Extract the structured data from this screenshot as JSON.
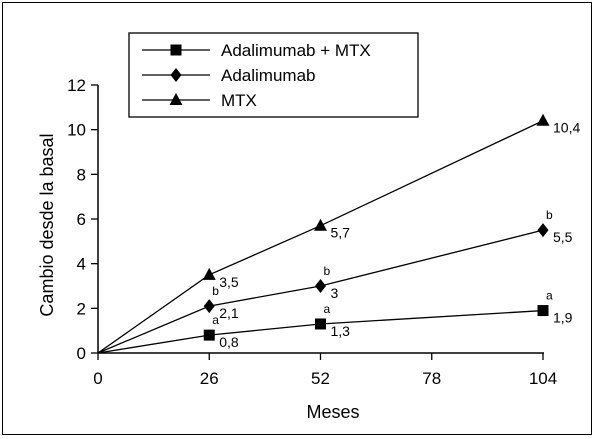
{
  "chart_data": {
    "type": "line",
    "xlabel": "Meses",
    "ylabel": "Cambio desde la basal",
    "xlim": [
      0,
      104
    ],
    "ylim": [
      0,
      12
    ],
    "x_ticks": [
      "0",
      "26",
      "52",
      "78",
      "104"
    ],
    "y_ticks": [
      "0",
      "2",
      "4",
      "6",
      "8",
      "10",
      "12"
    ],
    "grid": false,
    "legend_position": "top-left",
    "x": [
      0,
      26,
      52,
      104
    ],
    "series": [
      {
        "name": "Adalimumab + MTX",
        "marker": "square",
        "values": [
          0,
          0.8,
          1.3,
          1.9
        ],
        "point_labels": [
          "",
          "0,8",
          "1,3",
          "1,9"
        ],
        "sig_labels": [
          "",
          "a",
          "a",
          "a"
        ]
      },
      {
        "name": "Adalimumab",
        "marker": "diamond",
        "values": [
          0,
          2.1,
          3.0,
          5.5
        ],
        "point_labels": [
          "",
          "2,1",
          "3",
          "5,5"
        ],
        "sig_labels": [
          "",
          "b",
          "b",
          "b"
        ]
      },
      {
        "name": "MTX",
        "marker": "triangle",
        "values": [
          0,
          3.5,
          5.7,
          10.4
        ],
        "point_labels": [
          "",
          "3,5",
          "5,7",
          "10,4"
        ],
        "sig_labels": [
          "",
          "",
          "",
          ""
        ]
      }
    ]
  }
}
